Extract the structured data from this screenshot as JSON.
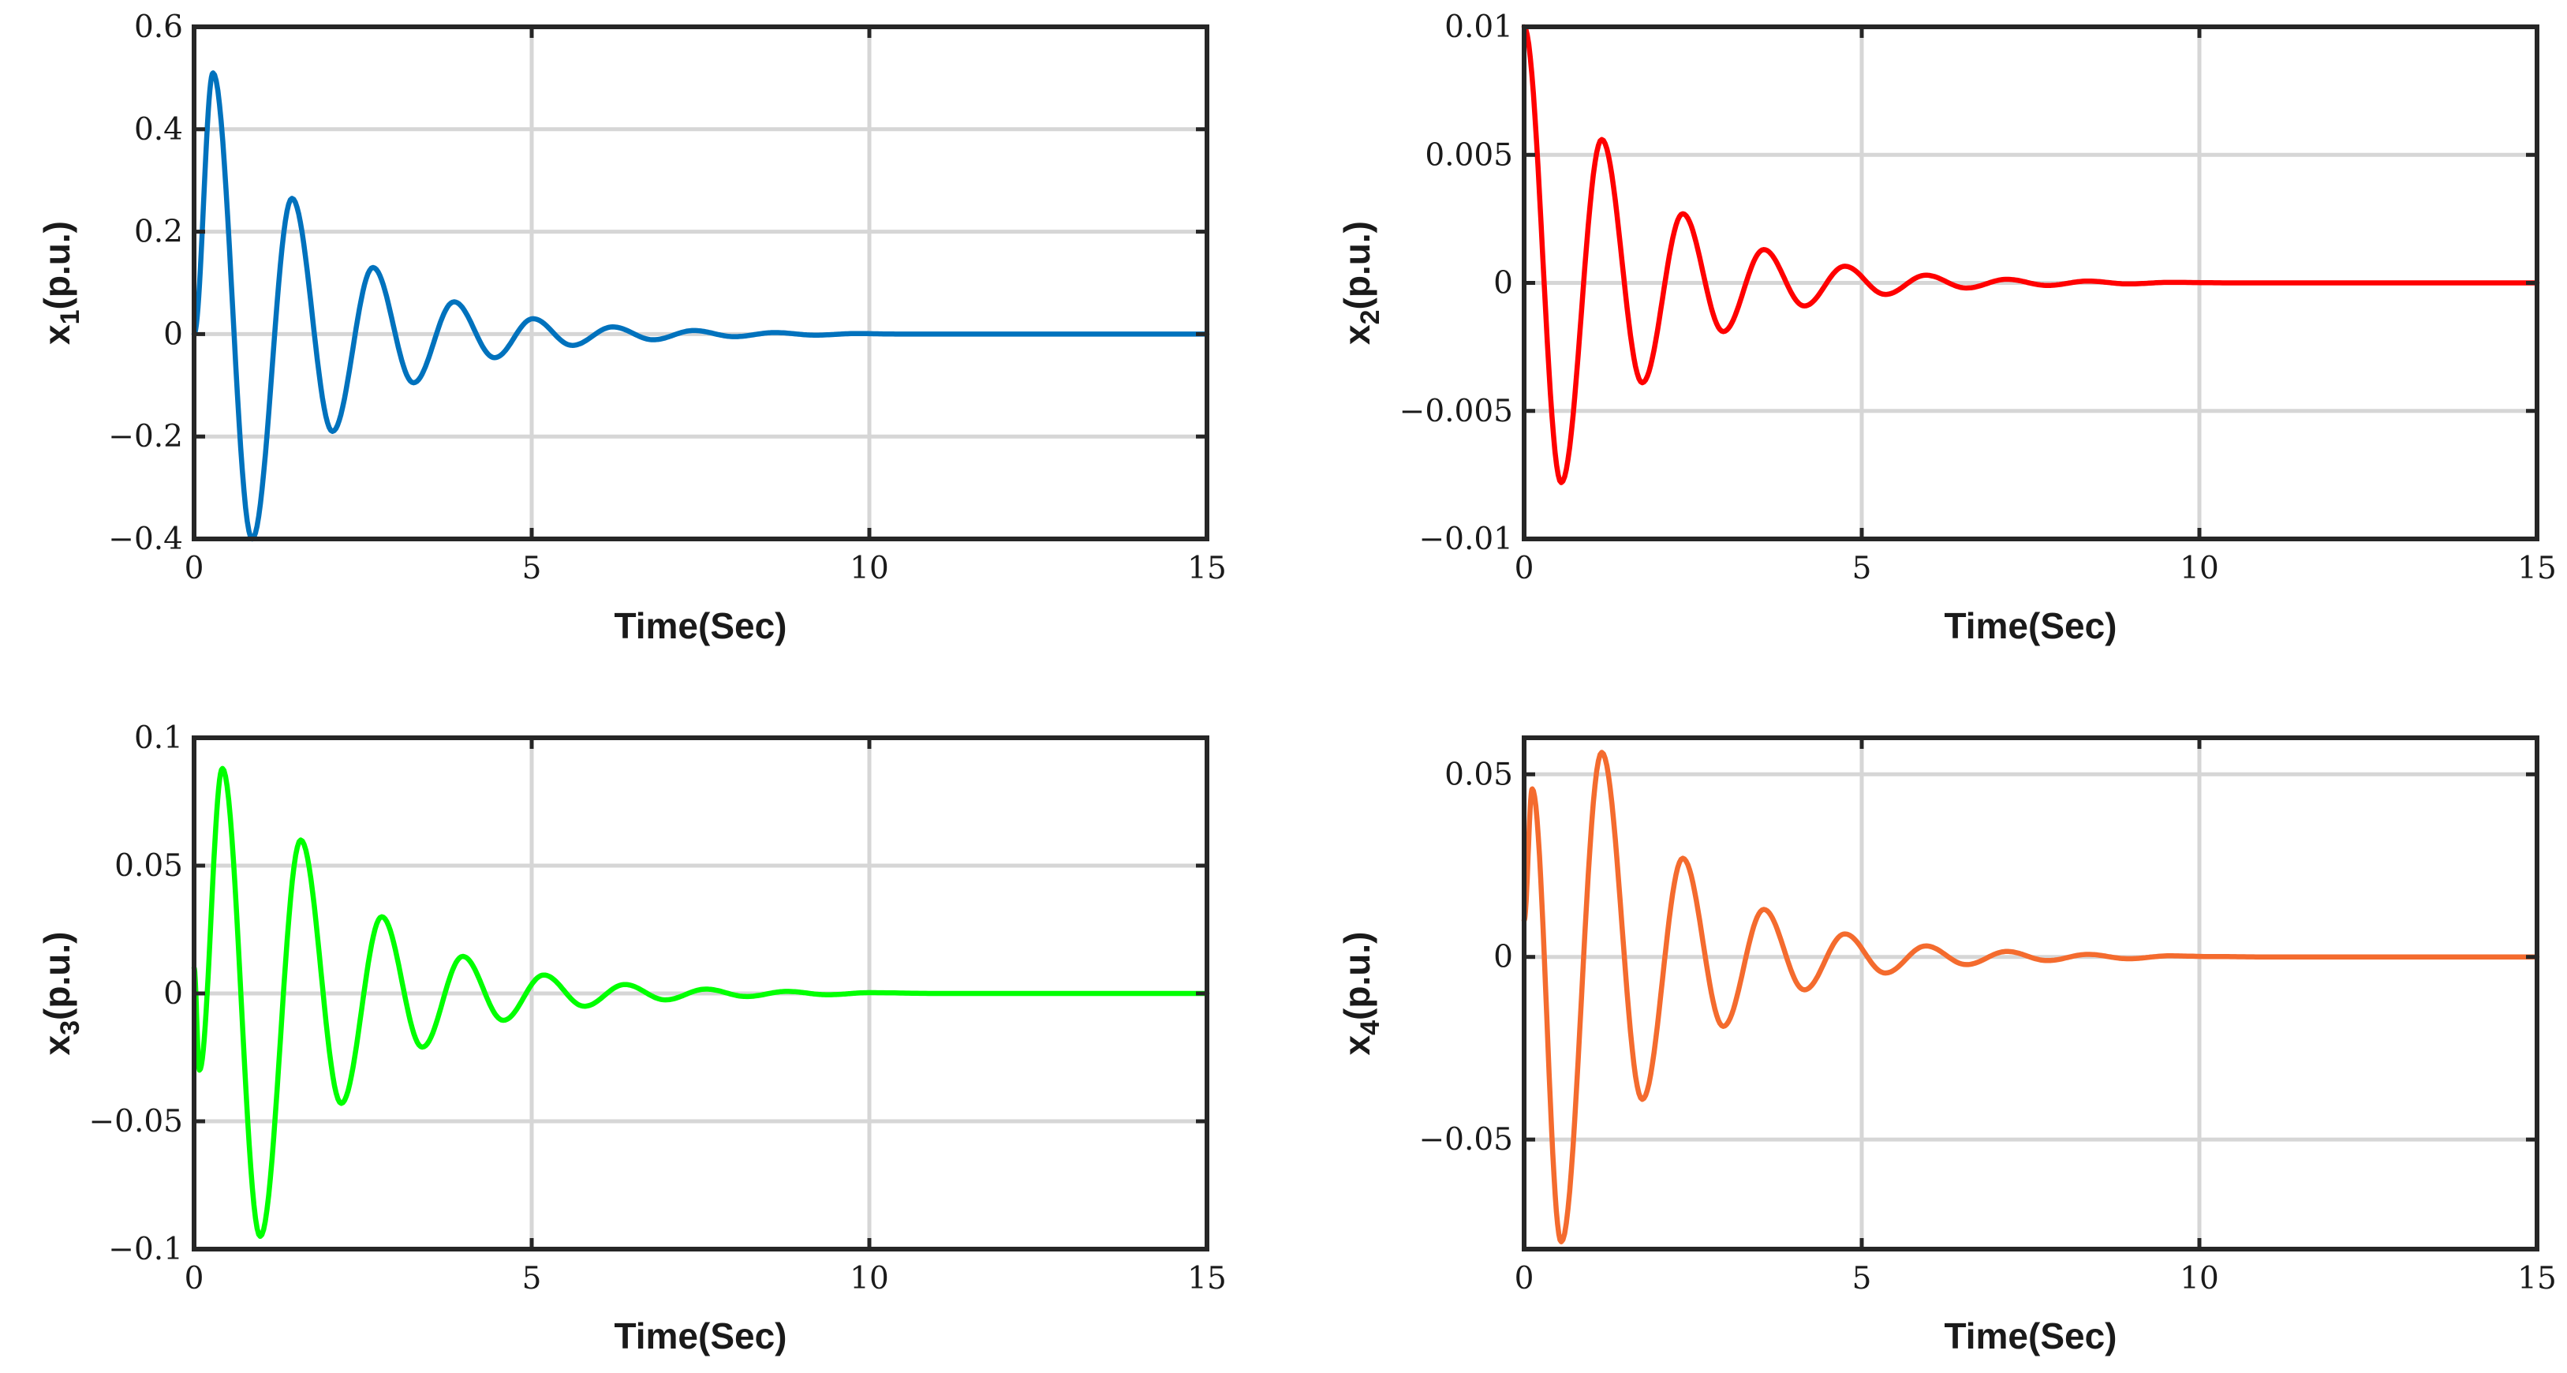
{
  "chart_data": [
    {
      "type": "line",
      "xlabel": "Time(Sec)",
      "ylabel": {
        "base": "x",
        "sub": "1",
        "rest": "(p.u.)"
      },
      "xlim": [
        0,
        15
      ],
      "ylim": [
        -0.4,
        0.6
      ],
      "xticks": [
        0,
        5,
        10,
        15
      ],
      "xtick_labels": [
        "0",
        "5",
        "10",
        "15"
      ],
      "yticks": [
        -0.4,
        -0.2,
        0,
        0.2,
        0.4,
        0.6
      ],
      "ytick_labels": [
        "−0.4",
        "−0.2",
        "0",
        "0.2",
        "0.4",
        "0.6"
      ],
      "grid": true,
      "color": "#0072BD",
      "series": [
        {
          "x": [
            0,
            0.28,
            0.86,
            1.45,
            2.05,
            2.65,
            3.25,
            3.85,
            4.45,
            5.02,
            5.6,
            6.2,
            6.8,
            7.4,
            8.0,
            8.6,
            9.2,
            9.8,
            10.5,
            11.5,
            12.5,
            13.5,
            15
          ],
          "y": [
            0,
            0.51,
            -0.4,
            0.265,
            -0.19,
            0.13,
            -0.095,
            0.063,
            -0.046,
            0.03,
            -0.022,
            0.014,
            -0.011,
            0.007,
            -0.005,
            0.003,
            -0.002,
            0.001,
            0,
            0,
            0,
            0,
            0
          ]
        }
      ]
    },
    {
      "type": "line",
      "xlabel": "Time(Sec)",
      "ylabel": {
        "base": "x",
        "sub": "2",
        "rest": "(p.u.)"
      },
      "xlim": [
        0,
        15
      ],
      "ylim": [
        -0.01,
        0.01
      ],
      "xticks": [
        0,
        5,
        10,
        15
      ],
      "xtick_labels": [
        "0",
        "5",
        "10",
        "15"
      ],
      "yticks": [
        -0.01,
        -0.005,
        0,
        0.005,
        0.01
      ],
      "ytick_labels": [
        "−0.01",
        "−0.005",
        "0",
        "0.005",
        "0.01"
      ],
      "grid": true,
      "color": "#FF0000",
      "series": [
        {
          "x": [
            0,
            0.55,
            1.15,
            1.75,
            2.35,
            2.95,
            3.55,
            4.15,
            4.75,
            5.35,
            5.95,
            6.55,
            7.15,
            7.75,
            8.35,
            8.95,
            9.55,
            10.5,
            11.5,
            13,
            15
          ],
          "y": [
            0.01,
            -0.0078,
            0.0056,
            -0.0039,
            0.0027,
            -0.0019,
            0.0013,
            -0.0009,
            0.00065,
            -0.00045,
            0.0003,
            -0.0002,
            0.00014,
            -0.0001,
            7e-05,
            -4e-05,
            2e-05,
            0,
            0,
            0,
            0
          ]
        }
      ]
    },
    {
      "type": "line",
      "xlabel": "Time(Sec)",
      "ylabel": {
        "base": "x",
        "sub": "3",
        "rest": "(p.u.)"
      },
      "xlim": [
        0,
        15
      ],
      "ylim": [
        -0.1,
        0.1
      ],
      "xticks": [
        0,
        5,
        10,
        15
      ],
      "xtick_labels": [
        "0",
        "5",
        "10",
        "15"
      ],
      "yticks": [
        -0.1,
        -0.05,
        0,
        0.05,
        0.1
      ],
      "ytick_labels": [
        "−0.1",
        "−0.05",
        "0",
        "0.05",
        "0.1"
      ],
      "grid": true,
      "color": "#00FF00",
      "series": [
        {
          "x": [
            0,
            0.08,
            0.42,
            0.98,
            1.58,
            2.18,
            2.78,
            3.38,
            3.98,
            4.58,
            5.18,
            5.78,
            6.38,
            6.98,
            7.58,
            8.18,
            8.78,
            9.38,
            10.0,
            11,
            12,
            13.5,
            15
          ],
          "y": [
            0.01,
            -0.03,
            0.088,
            -0.095,
            0.06,
            -0.043,
            0.03,
            -0.021,
            0.0145,
            -0.0105,
            0.0072,
            -0.005,
            0.0035,
            -0.0025,
            0.0017,
            -0.0012,
            0.0008,
            -0.0005,
            0.0003,
            0,
            0,
            0,
            0
          ]
        }
      ]
    },
    {
      "type": "line",
      "xlabel": "Time(Sec)",
      "ylabel": {
        "base": "x",
        "sub": "4",
        "rest": "(p.u.)"
      },
      "xlim": [
        0,
        15
      ],
      "ylim": [
        -0.08,
        0.06
      ],
      "xticks": [
        0,
        5,
        10,
        15
      ],
      "xtick_labels": [
        "0",
        "5",
        "10",
        "15"
      ],
      "yticks": [
        -0.05,
        0,
        0.05
      ],
      "ytick_labels": [
        "−0.05",
        "0",
        "0.05"
      ],
      "grid": true,
      "color": "#F46B2E",
      "series": [
        {
          "x": [
            0,
            0.12,
            0.55,
            1.15,
            1.75,
            2.35,
            2.95,
            3.55,
            4.15,
            4.75,
            5.35,
            5.95,
            6.55,
            7.15,
            7.75,
            8.35,
            8.95,
            9.55,
            10.2,
            11,
            12,
            13.5,
            15
          ],
          "y": [
            0.01,
            0.046,
            -0.078,
            0.056,
            -0.039,
            0.027,
            -0.019,
            0.013,
            -0.009,
            0.0063,
            -0.0044,
            0.003,
            -0.0021,
            0.0015,
            -0.001,
            0.0007,
            -0.0005,
            0.0003,
            0.0001,
            0,
            0,
            0,
            0
          ]
        }
      ]
    }
  ]
}
